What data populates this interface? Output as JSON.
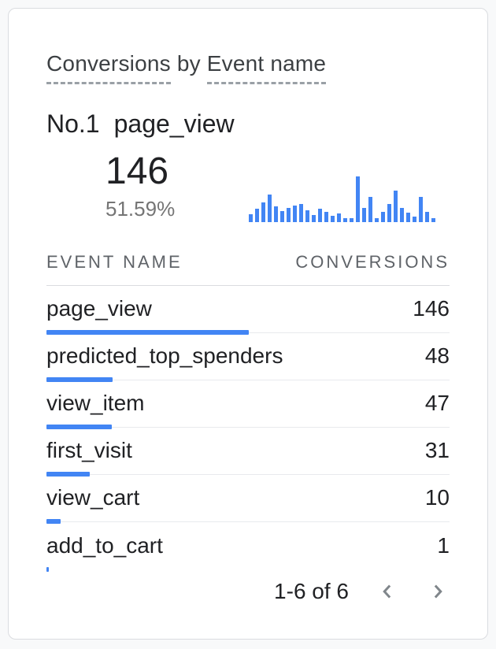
{
  "card": {
    "title": {
      "metric_term": "Conversions",
      "joiner": "by",
      "dimension_term": "Event name"
    },
    "hero": {
      "rank_label": "No.1",
      "top_event": "page_view",
      "value": "146",
      "percent": "51.59%"
    },
    "table": {
      "columns": {
        "event": "EVENT NAME",
        "conversions": "CONVERSIONS"
      },
      "rows": [
        {
          "event": "page_view",
          "conversions": 146
        },
        {
          "event": "predicted_top_spenders",
          "conversions": 48
        },
        {
          "event": "view_item",
          "conversions": 47
        },
        {
          "event": "first_visit",
          "conversions": 31
        },
        {
          "event": "view_cart",
          "conversions": 10
        },
        {
          "event": "add_to_cart",
          "conversions": 1
        }
      ],
      "max_conversions": 146
    },
    "pagination": {
      "range_label": "1-6 of 6",
      "prev_icon": "chevron-left-icon",
      "next_icon": "chevron-right-icon"
    }
  },
  "colors": {
    "accent_blue": "#4285f4",
    "title_text": "#3c4043",
    "primary_text": "#202124",
    "secondary_text": "#5f6368",
    "divider": "#e8eaed",
    "header_divider": "#dadce0",
    "chevron_gray": "#80868b",
    "dashed_underline": "#9aa0a6",
    "card_background": "#ffffff",
    "page_background": "#f8f9fa"
  },
  "chart_data": {
    "type": "bar",
    "title": "page_view conversions mini trend (sparkline, unlabeled axes)",
    "xlabel": "",
    "ylabel": "",
    "legend": "none",
    "grid": false,
    "categories": [
      1,
      2,
      3,
      4,
      5,
      6,
      7,
      8,
      9,
      10,
      11,
      12,
      13,
      14,
      15,
      16,
      17,
      18,
      19,
      20,
      21,
      22,
      23,
      24,
      25,
      26,
      27,
      28,
      29,
      30
    ],
    "relative_heights": [
      0.17,
      0.29,
      0.43,
      0.6,
      0.34,
      0.24,
      0.31,
      0.36,
      0.4,
      0.26,
      0.16,
      0.29,
      0.22,
      0.14,
      0.19,
      0.09,
      0.09,
      1.0,
      0.31,
      0.55,
      0.09,
      0.22,
      0.4,
      0.69,
      0.31,
      0.21,
      0.12,
      0.55,
      0.22,
      0.09
    ]
  }
}
